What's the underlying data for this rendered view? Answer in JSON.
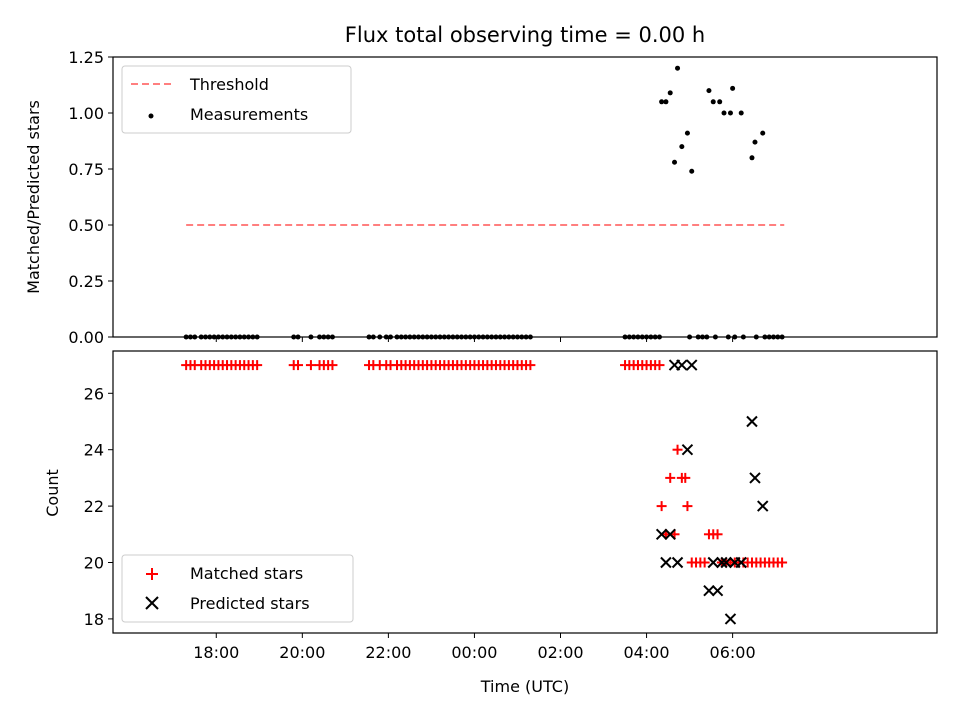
{
  "figure": {
    "title": "Flux total observing time = 0.00 h",
    "xlabel": "Time (UTC)"
  },
  "chart_data": [
    {
      "type": "scatter",
      "title": "Flux total observing time = 0.00 h",
      "ylabel": "Matched/Predicted stars",
      "xlabel": "",
      "x_unit": "hours since 00:00 UTC",
      "xlim": [
        -8.4,
        10.75
      ],
      "ylim": [
        0,
        1.25
      ],
      "yticks": [
        0.0,
        0.25,
        0.5,
        0.75,
        1.0,
        1.25
      ],
      "ytick_labels": [
        "0.00",
        "0.25",
        "0.50",
        "0.75",
        "1.00",
        "1.25"
      ],
      "grid": false,
      "legend": {
        "position": "upper-left",
        "entries": [
          "Threshold",
          "Measurements"
        ]
      },
      "series": [
        {
          "name": "Threshold",
          "kind": "line",
          "style": "dashed",
          "color": "#ff7f7f",
          "x": [
            -6.7,
            7.2
          ],
          "y": [
            0.5,
            0.5
          ]
        },
        {
          "name": "Measurements",
          "kind": "scatter",
          "marker": "dot",
          "color": "#000000",
          "points": [
            [
              -6.7,
              0
            ],
            [
              -6.6,
              0
            ],
            [
              -6.5,
              0
            ],
            [
              -6.35,
              0
            ],
            [
              -6.25,
              0
            ],
            [
              -6.15,
              0
            ],
            [
              -6.05,
              0
            ],
            [
              -5.95,
              0
            ],
            [
              -5.85,
              0
            ],
            [
              -5.75,
              0
            ],
            [
              -5.65,
              0
            ],
            [
              -5.55,
              0
            ],
            [
              -5.45,
              0
            ],
            [
              -5.35,
              0
            ],
            [
              -5.25,
              0
            ],
            [
              -5.15,
              0
            ],
            [
              -5.05,
              0
            ],
            [
              -4.2,
              0
            ],
            [
              -4.1,
              0
            ],
            [
              -3.8,
              0
            ],
            [
              -3.6,
              0
            ],
            [
              -3.5,
              0
            ],
            [
              -3.4,
              0
            ],
            [
              -3.3,
              0
            ],
            [
              -2.45,
              0
            ],
            [
              -2.35,
              0
            ],
            [
              -2.2,
              0
            ],
            [
              -2.05,
              0
            ],
            [
              -1.95,
              0
            ],
            [
              -1.8,
              0
            ],
            [
              -1.7,
              0
            ],
            [
              -1.6,
              0
            ],
            [
              -1.5,
              0
            ],
            [
              -1.4,
              0
            ],
            [
              -1.3,
              0
            ],
            [
              -1.2,
              0
            ],
            [
              -1.1,
              0
            ],
            [
              -1.0,
              0
            ],
            [
              -0.9,
              0
            ],
            [
              -0.8,
              0
            ],
            [
              -0.7,
              0
            ],
            [
              -0.6,
              0
            ],
            [
              -0.5,
              0
            ],
            [
              -0.4,
              0
            ],
            [
              -0.3,
              0
            ],
            [
              -0.2,
              0
            ],
            [
              -0.1,
              0
            ],
            [
              0.0,
              0
            ],
            [
              0.1,
              0
            ],
            [
              0.2,
              0
            ],
            [
              0.3,
              0
            ],
            [
              0.4,
              0
            ],
            [
              0.5,
              0
            ],
            [
              0.6,
              0
            ],
            [
              0.7,
              0
            ],
            [
              0.8,
              0
            ],
            [
              0.9,
              0
            ],
            [
              1.0,
              0
            ],
            [
              1.1,
              0
            ],
            [
              1.2,
              0
            ],
            [
              1.3,
              0
            ],
            [
              3.5,
              0
            ],
            [
              3.6,
              0
            ],
            [
              3.7,
              0
            ],
            [
              3.8,
              0
            ],
            [
              3.9,
              0
            ],
            [
              4.0,
              0
            ],
            [
              4.1,
              0
            ],
            [
              4.2,
              0
            ],
            [
              4.3,
              0
            ],
            [
              5.0,
              0
            ],
            [
              5.2,
              0
            ],
            [
              5.3,
              0
            ],
            [
              5.4,
              0
            ],
            [
              5.6,
              0
            ],
            [
              5.9,
              0
            ],
            [
              6.05,
              0
            ],
            [
              6.25,
              0
            ],
            [
              6.55,
              0
            ],
            [
              6.75,
              0
            ],
            [
              6.85,
              0
            ],
            [
              6.95,
              0
            ],
            [
              7.05,
              0
            ],
            [
              7.15,
              0
            ],
            [
              4.35,
              1.05
            ],
            [
              4.45,
              1.05
            ],
            [
              4.55,
              1.09
            ],
            [
              4.65,
              0.78
            ],
            [
              4.72,
              1.2
            ],
            [
              4.82,
              0.85
            ],
            [
              4.95,
              0.91
            ],
            [
              5.05,
              0.74
            ],
            [
              5.45,
              1.1
            ],
            [
              5.55,
              1.05
            ],
            [
              5.7,
              1.05
            ],
            [
              5.8,
              1.0
            ],
            [
              5.95,
              1.0
            ],
            [
              6.0,
              1.11
            ],
            [
              6.2,
              1.0
            ],
            [
              6.45,
              0.8
            ],
            [
              6.52,
              0.87
            ],
            [
              6.7,
              0.91
            ]
          ]
        }
      ]
    },
    {
      "type": "scatter",
      "title": "",
      "ylabel": "Count",
      "xlabel": "Time (UTC)",
      "x_unit": "hours since 00:00 UTC",
      "xlim": [
        -8.4,
        10.75
      ],
      "ylim": [
        17.5,
        27.5
      ],
      "yticks": [
        18,
        20,
        22,
        24,
        26
      ],
      "xticks": [
        -6,
        -4,
        -2,
        0,
        2,
        4,
        6
      ],
      "xtick_labels": [
        "18:00",
        "20:00",
        "22:00",
        "00:00",
        "02:00",
        "04:00",
        "06:00"
      ],
      "grid": false,
      "legend": {
        "position": "lower-left",
        "entries": [
          "Matched stars",
          "Predicted stars"
        ]
      },
      "series": [
        {
          "name": "Matched stars",
          "marker": "plus",
          "color": "#ff0000",
          "points": [
            [
              -6.7,
              27
            ],
            [
              -6.6,
              27
            ],
            [
              -6.5,
              27
            ],
            [
              -6.35,
              27
            ],
            [
              -6.25,
              27
            ],
            [
              -6.15,
              27
            ],
            [
              -6.05,
              27
            ],
            [
              -5.95,
              27
            ],
            [
              -5.85,
              27
            ],
            [
              -5.75,
              27
            ],
            [
              -5.65,
              27
            ],
            [
              -5.55,
              27
            ],
            [
              -5.45,
              27
            ],
            [
              -5.35,
              27
            ],
            [
              -5.25,
              27
            ],
            [
              -5.15,
              27
            ],
            [
              -5.05,
              27
            ],
            [
              -4.2,
              27
            ],
            [
              -4.1,
              27
            ],
            [
              -3.8,
              27
            ],
            [
              -3.6,
              27
            ],
            [
              -3.5,
              27
            ],
            [
              -3.4,
              27
            ],
            [
              -3.3,
              27
            ],
            [
              -2.45,
              27
            ],
            [
              -2.35,
              27
            ],
            [
              -2.2,
              27
            ],
            [
              -2.05,
              27
            ],
            [
              -1.95,
              27
            ],
            [
              -1.8,
              27
            ],
            [
              -1.7,
              27
            ],
            [
              -1.6,
              27
            ],
            [
              -1.5,
              27
            ],
            [
              -1.4,
              27
            ],
            [
              -1.3,
              27
            ],
            [
              -1.2,
              27
            ],
            [
              -1.1,
              27
            ],
            [
              -1.0,
              27
            ],
            [
              -0.9,
              27
            ],
            [
              -0.8,
              27
            ],
            [
              -0.7,
              27
            ],
            [
              -0.6,
              27
            ],
            [
              -0.5,
              27
            ],
            [
              -0.4,
              27
            ],
            [
              -0.3,
              27
            ],
            [
              -0.2,
              27
            ],
            [
              -0.1,
              27
            ],
            [
              0.0,
              27
            ],
            [
              0.1,
              27
            ],
            [
              0.2,
              27
            ],
            [
              0.3,
              27
            ],
            [
              0.4,
              27
            ],
            [
              0.5,
              27
            ],
            [
              0.6,
              27
            ],
            [
              0.7,
              27
            ],
            [
              0.8,
              27
            ],
            [
              0.9,
              27
            ],
            [
              1.0,
              27
            ],
            [
              1.1,
              27
            ],
            [
              1.2,
              27
            ],
            [
              1.3,
              27
            ],
            [
              3.5,
              27
            ],
            [
              3.6,
              27
            ],
            [
              3.7,
              27
            ],
            [
              3.8,
              27
            ],
            [
              3.9,
              27
            ],
            [
              4.0,
              27
            ],
            [
              4.1,
              27
            ],
            [
              4.2,
              27
            ],
            [
              4.3,
              27
            ],
            [
              4.35,
              22
            ],
            [
              4.45,
              21
            ],
            [
              4.55,
              23
            ],
            [
              4.65,
              21
            ],
            [
              4.72,
              24
            ],
            [
              4.82,
              23
            ],
            [
              4.9,
              23
            ],
            [
              4.95,
              22
            ],
            [
              5.05,
              20
            ],
            [
              5.15,
              20
            ],
            [
              5.25,
              20
            ],
            [
              5.35,
              20
            ],
            [
              5.45,
              21
            ],
            [
              5.55,
              21
            ],
            [
              5.65,
              21
            ],
            [
              5.75,
              20
            ],
            [
              5.85,
              20
            ],
            [
              5.95,
              20
            ],
            [
              6.05,
              20
            ],
            [
              6.15,
              20
            ],
            [
              6.25,
              20
            ],
            [
              6.35,
              20
            ],
            [
              6.45,
              20
            ],
            [
              6.55,
              20
            ],
            [
              6.65,
              20
            ],
            [
              6.75,
              20
            ],
            [
              6.85,
              20
            ],
            [
              6.95,
              20
            ],
            [
              7.05,
              20
            ],
            [
              7.15,
              20
            ]
          ]
        },
        {
          "name": "Predicted stars",
          "marker": "x",
          "color": "#000000",
          "points": [
            [
              4.35,
              21
            ],
            [
              4.45,
              20
            ],
            [
              4.55,
              21
            ],
            [
              4.65,
              27
            ],
            [
              4.72,
              20
            ],
            [
              4.82,
              27
            ],
            [
              4.95,
              24
            ],
            [
              5.05,
              27
            ],
            [
              5.45,
              19
            ],
            [
              5.55,
              20
            ],
            [
              5.65,
              19
            ],
            [
              5.75,
              20
            ],
            [
              5.85,
              20
            ],
            [
              5.95,
              18
            ],
            [
              6.05,
              20
            ],
            [
              6.2,
              20
            ],
            [
              6.45,
              25
            ],
            [
              6.52,
              23
            ],
            [
              6.7,
              22
            ]
          ]
        }
      ]
    }
  ]
}
